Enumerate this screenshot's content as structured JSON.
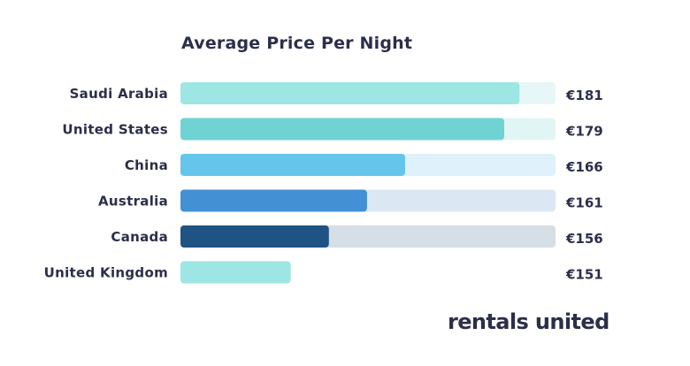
{
  "chart_data": {
    "type": "bar",
    "orientation": "horizontal",
    "title": "Average Price Per Night",
    "categories": [
      "Saudi Arabia",
      "United States",
      "China",
      "Australia",
      "Canada",
      "United Kingdom"
    ],
    "values": [
      181,
      179,
      166,
      161,
      156,
      151
    ],
    "value_labels": [
      "€181",
      "€179",
      "€166",
      "€161",
      "€156",
      "€151"
    ],
    "bar_colors": [
      "#9de6e3",
      "#70d3d3",
      "#66c5ea",
      "#4390d4",
      "#1f5383",
      "#9de6e3"
    ],
    "track_colors": [
      "#e7f7f7",
      "#e2f5f5",
      "#dff1fa",
      "#dbe8f4",
      "#d6dee6",
      "#ffffff"
    ],
    "grid": false,
    "legend": "none"
  },
  "brand": {
    "logo_text": "rentals united"
  }
}
